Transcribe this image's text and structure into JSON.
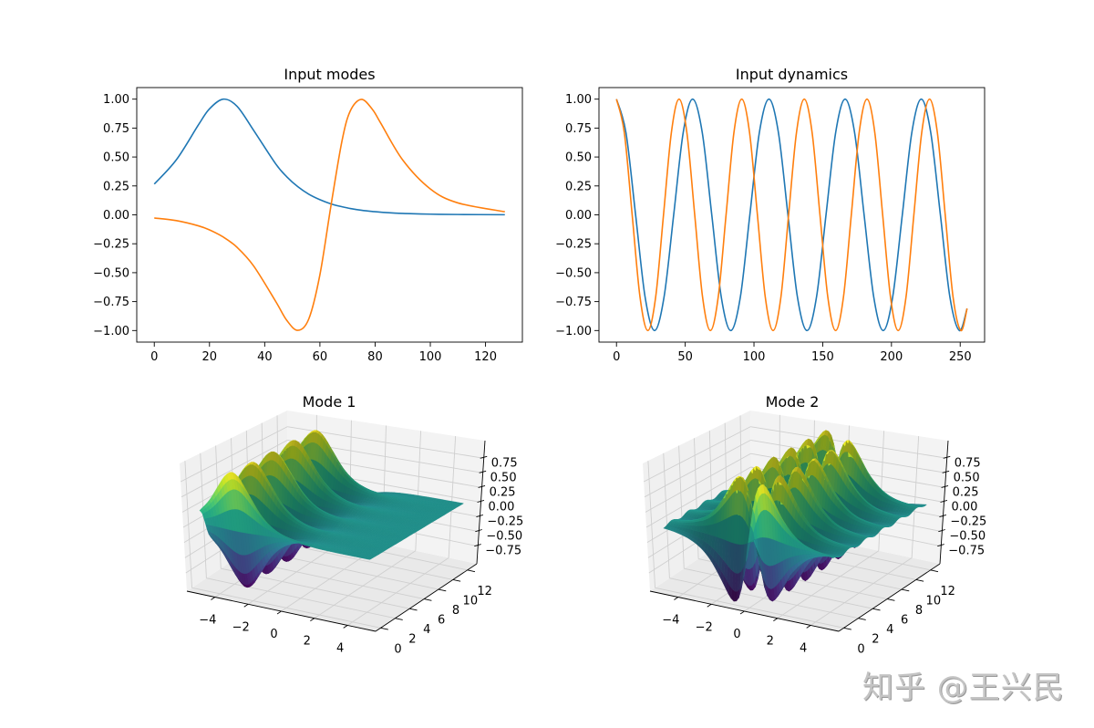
{
  "chart_data": [
    {
      "type": "line",
      "title": "Input modes",
      "xlim": [
        -6.35,
        133.35
      ],
      "ylim": [
        -1.1,
        1.1
      ],
      "xticks": [
        0,
        20,
        40,
        60,
        80,
        100,
        120
      ],
      "xtick_labels": [
        "0",
        "20",
        "40",
        "60",
        "80",
        "100",
        "120"
      ],
      "yticks": [
        1.0,
        0.75,
        0.5,
        0.25,
        0.0,
        -0.25,
        -0.5,
        -0.75,
        -1.0
      ],
      "ytick_labels": [
        "1.00",
        "0.75",
        "0.50",
        "0.25",
        "0.00",
        "−0.25",
        "−0.50",
        "−0.75",
        "−1.00"
      ],
      "grid": false,
      "x": [
        0,
        8,
        16,
        20,
        25,
        30,
        36,
        44,
        48,
        52,
        56,
        60,
        64,
        68,
        71,
        75,
        79,
        82,
        90,
        100,
        110,
        127
      ],
      "series": [
        {
          "color": "#1f77b4",
          "values": [
            0.266,
            0.476,
            0.778,
            0.916,
            1.0,
            0.938,
            0.73,
            0.44,
            0.329,
            0.243,
            0.178,
            0.131,
            0.095,
            0.07,
            0.055,
            0.04,
            0.029,
            0.023,
            0.012,
            0.006,
            0.003,
            0.001
          ]
        },
        {
          "color": "#ff7f0e",
          "values": [
            -0.027,
            -0.05,
            -0.095,
            -0.13,
            -0.192,
            -0.281,
            -0.442,
            -0.749,
            -0.912,
            -0.998,
            -0.898,
            -0.518,
            0.078,
            0.639,
            0.898,
            0.998,
            0.912,
            0.794,
            0.474,
            0.224,
            0.103,
            0.027
          ]
        }
      ]
    },
    {
      "type": "line",
      "title": "Input dynamics",
      "xlim": [
        -12.75,
        267.75
      ],
      "ylim": [
        -1.1,
        1.1
      ],
      "xticks": [
        0,
        50,
        100,
        150,
        200,
        250
      ],
      "xtick_labels": [
        "0",
        "50",
        "100",
        "150",
        "200",
        "250"
      ],
      "yticks": [
        1.0,
        0.75,
        0.5,
        0.25,
        0.0,
        -0.25,
        -0.5,
        -0.75,
        -1.0
      ],
      "ytick_labels": [
        "1.00",
        "0.75",
        "0.50",
        "0.25",
        "0.00",
        "−0.25",
        "−0.50",
        "−0.75",
        "−1.00"
      ],
      "grid": false,
      "series": [
        {
          "color": "#1f77b4",
          "x": [
            0,
            6.9,
            13.9,
            20.8,
            27.7,
            34.6,
            41.6,
            48.5,
            55.4,
            62.4,
            69.3,
            76.2,
            83.1,
            90.1,
            97.0,
            103.9,
            110.9,
            117.8,
            124.7,
            131.6,
            138.6,
            145.5,
            152.4,
            159.4,
            166.3,
            173.2,
            180.1,
            187.1,
            194.0,
            200.9,
            207.9,
            214.8,
            221.7,
            228.6,
            235.6,
            242.5,
            249.4,
            255
          ],
          "values": [
            1,
            0.71,
            0,
            -0.71,
            -1,
            -0.71,
            0,
            0.71,
            1,
            0.71,
            0,
            -0.71,
            -1,
            -0.71,
            0,
            0.71,
            1,
            0.71,
            0,
            -0.71,
            -1,
            -0.71,
            0,
            0.71,
            1,
            0.71,
            0,
            -0.71,
            -1,
            -0.71,
            0,
            0.71,
            1,
            0.71,
            0,
            -0.71,
            -1,
            -0.81
          ]
        },
        {
          "color": "#ff7f0e",
          "x": [
            0,
            5.7,
            11.4,
            17.1,
            22.8,
            28.5,
            34.2,
            39.9,
            45.5,
            51.2,
            56.9,
            62.6,
            68.3,
            74.0,
            79.7,
            85.4,
            91.1,
            96.8,
            102.5,
            108.2,
            113.9,
            119.6,
            125.2,
            130.9,
            136.6,
            142.3,
            148.0,
            153.7,
            159.4,
            165.1,
            170.8,
            176.5,
            182.2,
            187.9,
            193.6,
            199.3,
            204.9,
            210.6,
            216.3,
            222.0,
            227.7,
            233.4,
            239.1,
            244.8,
            250.5,
            255
          ],
          "values": [
            1,
            0.71,
            0,
            -0.71,
            -1,
            -0.71,
            0,
            0.71,
            1,
            0.71,
            0,
            -0.71,
            -1,
            -0.71,
            0,
            0.71,
            1,
            0.71,
            0,
            -0.71,
            -1,
            -0.71,
            0,
            0.71,
            1,
            0.71,
            0,
            -0.71,
            -1,
            -0.71,
            0,
            0.71,
            1,
            0.71,
            0,
            -0.71,
            -1,
            -0.71,
            0,
            0.71,
            1,
            0.71,
            0,
            -0.71,
            -1,
            -0.81
          ]
        }
      ]
    },
    {
      "type": "surface",
      "title": "Mode 1",
      "colormap": "viridis",
      "xlim": [
        -5.7,
        5.7
      ],
      "ylim": [
        -0.7,
        13.3
      ],
      "zlim": [
        -1.05,
        1.05
      ],
      "xticks": [
        -4,
        -2,
        0,
        2,
        4
      ],
      "xtick_labels": [
        "−4",
        "−2",
        "0",
        "2",
        "4"
      ],
      "yticks": [
        0,
        2,
        4,
        6,
        8,
        10,
        12
      ],
      "ytick_labels": [
        "0",
        "2",
        "4",
        "6",
        "8",
        "10",
        "12"
      ],
      "zticks": [
        0.75,
        0.5,
        0.25,
        0.0,
        -0.25,
        -0.5,
        -0.75
      ],
      "ztick_labels": [
        "0.75",
        "0.50",
        "0.25",
        "0.00",
        "−0.25",
        "−0.50",
        "−0.75"
      ]
    },
    {
      "type": "surface",
      "title": "Mode 2",
      "colormap": "viridis",
      "xlim": [
        -5.7,
        5.7
      ],
      "ylim": [
        -0.7,
        13.3
      ],
      "zlim": [
        -1.05,
        1.05
      ],
      "xticks": [
        -4,
        -2,
        0,
        2,
        4
      ],
      "xtick_labels": [
        "−4",
        "−2",
        "0",
        "2",
        "4"
      ],
      "yticks": [
        0,
        2,
        4,
        6,
        8,
        10,
        12
      ],
      "ytick_labels": [
        "0",
        "2",
        "4",
        "6",
        "8",
        "10",
        "12"
      ],
      "zticks": [
        0.75,
        0.5,
        0.25,
        0.0,
        -0.25,
        -0.5,
        -0.75
      ],
      "ztick_labels": [
        "0.75",
        "0.50",
        "0.25",
        "0.00",
        "−0.25",
        "−0.50",
        "−0.75"
      ]
    }
  ],
  "watermark": "知乎 @王兴民"
}
